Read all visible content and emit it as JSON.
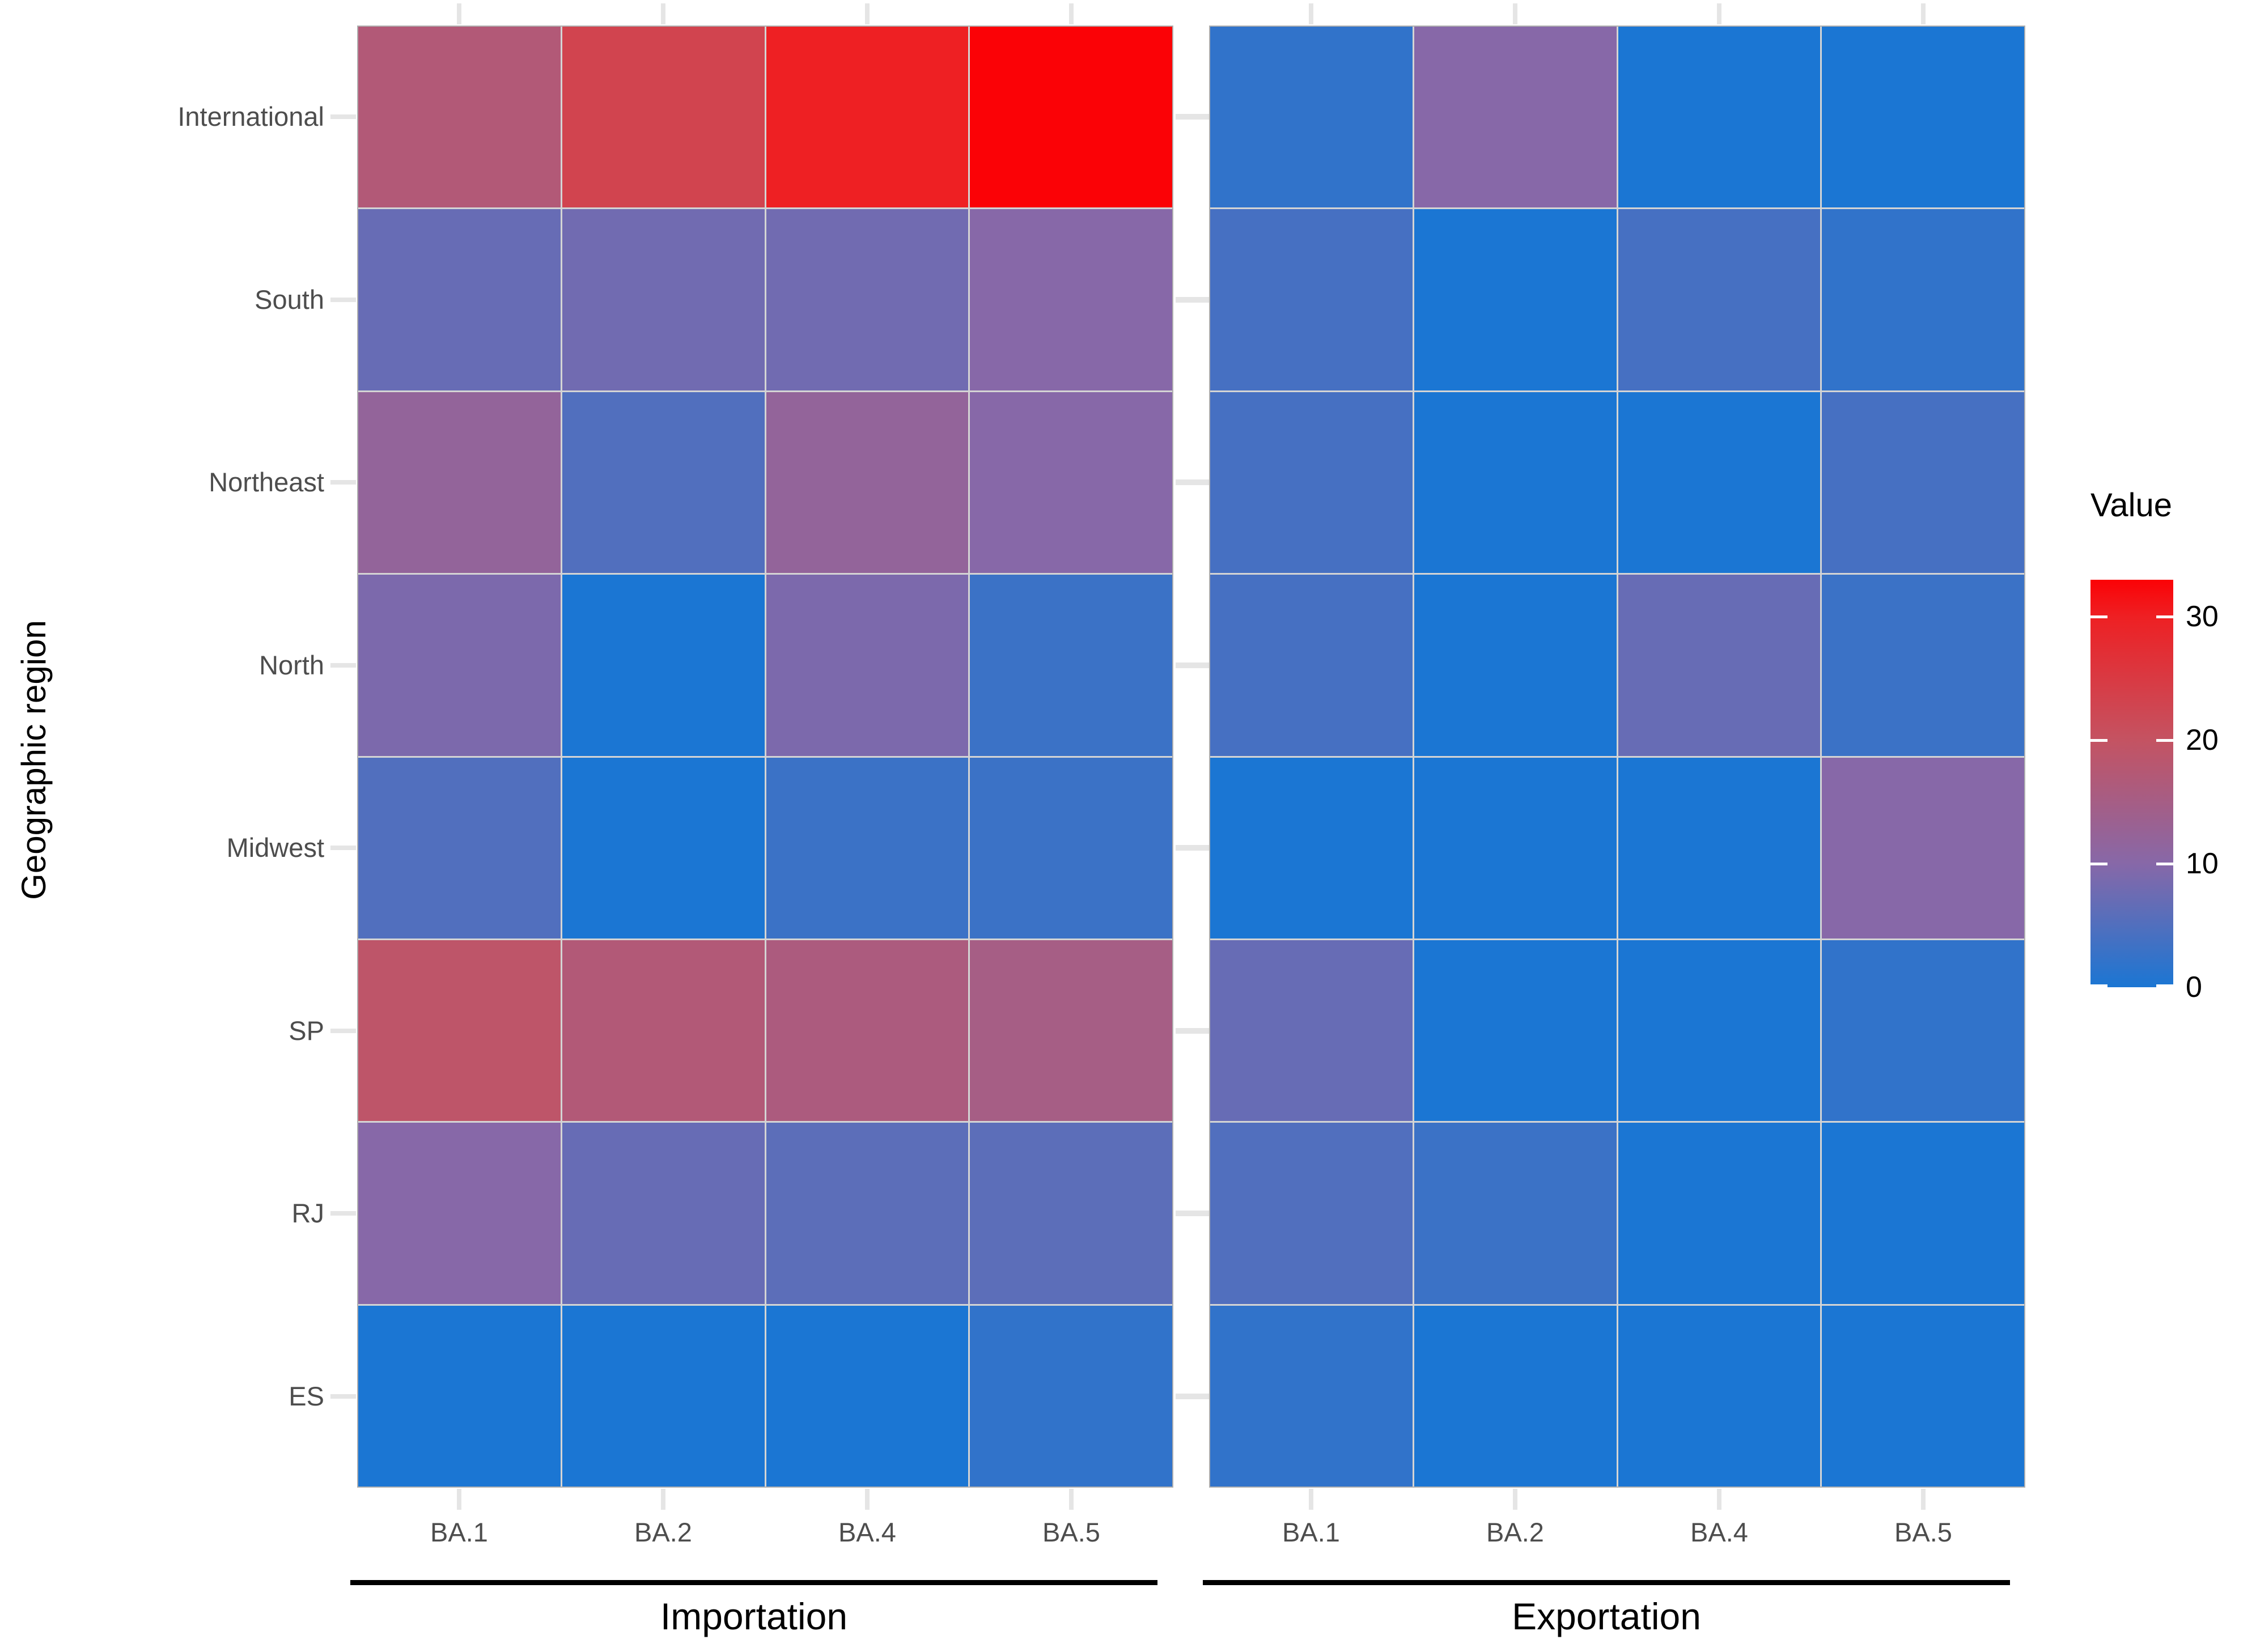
{
  "figure": {
    "y_axis": {
      "title": "Geographic region"
    },
    "legend": {
      "title": "Value",
      "tick_values": [
        0,
        10,
        20,
        30
      ],
      "domain_min": 0,
      "domain_max": 33
    },
    "colors": {
      "gradient_stops": [
        {
          "value": 0,
          "color": "#1B76D3"
        },
        {
          "value": 10,
          "color": "#8768A8"
        },
        {
          "value": 20,
          "color": "#C45362"
        },
        {
          "value": 30,
          "color": "#EE2023"
        },
        {
          "value": 33,
          "color": "#FB0206"
        }
      ],
      "grid_line": "#d4d4d4",
      "panel_border": "#b0b0b0",
      "tick_mark": "#e5e5e5",
      "axis_text": "#4d4d4d",
      "strip_bar": "#000000"
    }
  },
  "chart_data": {
    "type": "heatmap",
    "title": "",
    "xlabel": "",
    "ylabel": "Geographic region",
    "legend_title": "Value",
    "legend_ticks": [
      0,
      10,
      20,
      30
    ],
    "value_domain": [
      0,
      33
    ],
    "rows": [
      "International",
      "South",
      "Northeast",
      "North",
      "Midwest",
      "SP",
      "RJ",
      "ES"
    ],
    "columns": [
      "BA.1",
      "BA.2",
      "BA.4",
      "BA.5"
    ],
    "series": [
      {
        "name": "Importation",
        "values": [
          [
            17,
            23,
            30,
            33
          ],
          [
            7,
            8,
            8,
            10
          ],
          [
            12,
            5,
            12,
            10
          ],
          [
            9,
            0,
            9,
            3
          ],
          [
            5,
            0,
            3,
            3
          ],
          [
            19,
            17,
            16,
            15
          ],
          [
            10,
            7,
            6,
            6
          ],
          [
            0,
            0,
            0,
            2
          ]
        ]
      },
      {
        "name": "Exportation",
        "values": [
          [
            2,
            10,
            0,
            0
          ],
          [
            4,
            0,
            4,
            2
          ],
          [
            4,
            0,
            0,
            4
          ],
          [
            4,
            0,
            7,
            3
          ],
          [
            0,
            0,
            0,
            10
          ],
          [
            7,
            0,
            0,
            2
          ],
          [
            5,
            3,
            0,
            0
          ],
          [
            2,
            0,
            0,
            0
          ]
        ]
      }
    ]
  }
}
